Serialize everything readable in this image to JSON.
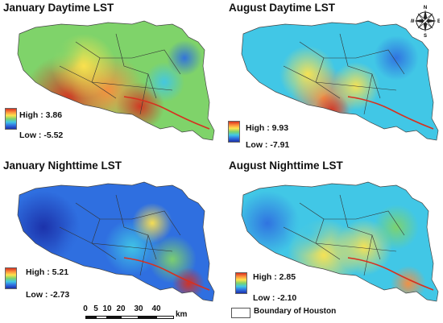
{
  "panels": [
    {
      "id": "jan-day",
      "title": "January Daytime LST",
      "legend_high": "High : 3.86",
      "legend_low": "Low : -5.52",
      "palette": "warm"
    },
    {
      "id": "aug-day",
      "title": "August Daytime LST",
      "legend_high": "High : 9.93",
      "legend_low": "Low : -7.91",
      "palette": "mixed"
    },
    {
      "id": "jan-night",
      "title": "January Nighttime LST",
      "legend_high": "High : 5.21",
      "legend_low": "Low : -2.73",
      "palette": "cool"
    },
    {
      "id": "aug-night",
      "title": "August Nighttime LST",
      "legend_high": "High : 2.85",
      "legend_low": "Low : -2.10",
      "palette": "mixed-night"
    }
  ],
  "scalebar": {
    "ticks": [
      "0",
      "5",
      "10",
      "20",
      "30",
      "40"
    ],
    "unit": "km"
  },
  "boundary_legend": "Boundary of Houston",
  "compass": {
    "n": "N",
    "s": "S",
    "e": "E",
    "w": "W"
  },
  "colors": {
    "high": "#d7301f",
    "orange": "#fc8d3c",
    "yellow": "#ffe34d",
    "green": "#7fd36a",
    "cyan": "#41c7e6",
    "blue": "#2f6fe0",
    "low": "#1b2fa8"
  }
}
